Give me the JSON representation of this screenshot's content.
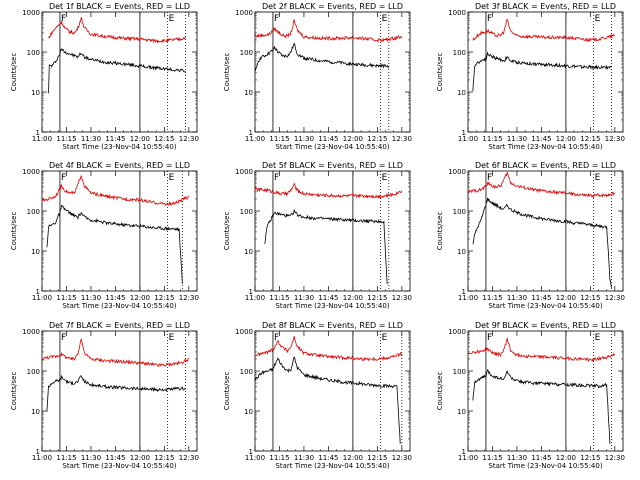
{
  "shared": {
    "ylabel": "Counts/sec",
    "xlabel": "Start Time (23-Nov-04 10:55:40)",
    "x_ticks": [
      "11:00",
      "11:15",
      "11:30",
      "11:45",
      "12:00",
      "12:15",
      "12:30"
    ],
    "x_tick_minutes": [
      0,
      15,
      30,
      45,
      60,
      75,
      90
    ],
    "y_ticks": [
      "1",
      "10",
      "100",
      "1000"
    ],
    "ylim": [
      1,
      1000
    ],
    "xlim_minutes": [
      0,
      95
    ],
    "log_y": true,
    "series_colors": {
      "events": "#000000",
      "lld": "#e00000"
    }
  },
  "chart_data": [
    {
      "type": "line",
      "title": "Det 1f BLACK = Events, RED = LLD",
      "markers": [
        {
          "label": "F",
          "x_min": 11
        },
        {
          "label": "E",
          "x_min": 77
        }
      ],
      "vlines_solid": [
        11,
        60
      ],
      "vlines_dotted": [
        77
      ],
      "data_end_min": 88,
      "series": [
        {
          "key": "events",
          "x": [
            4,
            4.5,
            6,
            8,
            11,
            12,
            14,
            17,
            20,
            22,
            24,
            26,
            30,
            40,
            50,
            60,
            65,
            70,
            75,
            80,
            85,
            88
          ],
          "y": [
            10,
            45,
            45,
            55,
            90,
            120,
            100,
            90,
            80,
            75,
            95,
            75,
            65,
            55,
            50,
            45,
            42,
            40,
            38,
            36,
            35,
            33
          ]
        },
        {
          "key": "lld",
          "x": [
            4,
            6,
            8,
            11,
            12,
            14,
            17,
            20,
            22,
            24,
            26,
            30,
            40,
            50,
            60,
            65,
            70,
            75,
            80,
            85,
            88
          ],
          "y": [
            220,
            300,
            380,
            520,
            560,
            400,
            320,
            300,
            400,
            700,
            400,
            280,
            240,
            220,
            210,
            200,
            190,
            190,
            200,
            210,
            230
          ]
        }
      ]
    },
    {
      "type": "line",
      "title": "Det 2f BLACK = Events, RED = LLD",
      "markers": [
        {
          "label": "F",
          "x_min": 11
        },
        {
          "label": "E",
          "x_min": 77
        }
      ],
      "vlines_solid": [
        11,
        60
      ],
      "vlines_dotted": [
        77
      ],
      "data_end_min": 82,
      "series": [
        {
          "key": "events",
          "x": [
            0,
            2,
            4,
            6,
            8,
            11,
            12,
            14,
            17,
            20,
            22,
            24,
            26,
            30,
            40,
            50,
            60,
            65,
            70,
            75,
            80,
            82
          ],
          "y": [
            30,
            60,
            75,
            80,
            90,
            110,
            130,
            100,
            80,
            80,
            100,
            160,
            90,
            70,
            60,
            55,
            50,
            48,
            47,
            45,
            45,
            44
          ]
        },
        {
          "key": "lld",
          "x": [
            0,
            4,
            8,
            11,
            12,
            14,
            17,
            20,
            22,
            24,
            26,
            30,
            40,
            50,
            60,
            65,
            70,
            75,
            80,
            85,
            90
          ],
          "y": [
            250,
            260,
            270,
            330,
            380,
            320,
            260,
            250,
            300,
            600,
            350,
            240,
            220,
            220,
            230,
            220,
            210,
            200,
            200,
            220,
            250
          ]
        }
      ]
    },
    {
      "type": "line",
      "title": "Det 3f BLACK = Events, RED = LLD",
      "markers": [
        {
          "label": "F",
          "x_min": 11
        },
        {
          "label": "E",
          "x_min": 77
        }
      ],
      "vlines_solid": [
        11,
        60
      ],
      "vlines_dotted": [
        77
      ],
      "data_end_min": 88,
      "series": [
        {
          "key": "events",
          "x": [
            3,
            4,
            6,
            8,
            11,
            12,
            14,
            17,
            20,
            22,
            24,
            26,
            30,
            40,
            50,
            60,
            65,
            70,
            75,
            80,
            85,
            88
          ],
          "y": [
            10,
            45,
            55,
            60,
            70,
            90,
            80,
            70,
            65,
            60,
            75,
            60,
            55,
            50,
            48,
            45,
            44,
            42,
            42,
            41,
            42,
            42
          ]
        },
        {
          "key": "lld",
          "x": [
            3,
            6,
            8,
            11,
            12,
            14,
            17,
            20,
            22,
            24,
            26,
            30,
            40,
            50,
            60,
            65,
            70,
            75,
            80,
            85,
            90
          ],
          "y": [
            200,
            260,
            300,
            320,
            340,
            300,
            260,
            260,
            320,
            650,
            340,
            250,
            240,
            230,
            230,
            220,
            210,
            200,
            210,
            230,
            260
          ]
        }
      ]
    },
    {
      "type": "line",
      "title": "Det 4f BLACK = Events, RED = LLD",
      "markers": [
        {
          "label": "F",
          "x_min": 11
        },
        {
          "label": "E",
          "x_min": 77
        }
      ],
      "vlines_solid": [
        11,
        60
      ],
      "vlines_dotted": [
        77
      ],
      "data_end_min": 86,
      "series": [
        {
          "key": "events",
          "x": [
            3,
            4,
            6,
            8,
            11,
            12,
            14,
            17,
            20,
            22,
            24,
            26,
            30,
            40,
            50,
            60,
            65,
            70,
            75,
            80,
            84,
            85,
            86
          ],
          "y": [
            12,
            40,
            45,
            50,
            90,
            130,
            110,
            90,
            75,
            70,
            90,
            70,
            60,
            50,
            45,
            42,
            40,
            38,
            37,
            36,
            35,
            8,
            1.5
          ]
        },
        {
          "key": "lld",
          "x": [
            0,
            4,
            8,
            11,
            12,
            14,
            17,
            20,
            22,
            24,
            26,
            30,
            40,
            50,
            60,
            65,
            70,
            75,
            80,
            85,
            90
          ],
          "y": [
            180,
            200,
            230,
            350,
            420,
            330,
            280,
            280,
            450,
            800,
            420,
            280,
            230,
            200,
            190,
            170,
            160,
            150,
            150,
            180,
            230
          ]
        }
      ]
    },
    {
      "type": "line",
      "title": "Det 5f BLACK = Events, RED = LLD",
      "markers": [
        {
          "label": "F",
          "x_min": 11
        },
        {
          "label": "E",
          "x_min": 77
        }
      ],
      "vlines_solid": [
        11,
        60
      ],
      "vlines_dotted": [
        77
      ],
      "data_end_min": 82,
      "series": [
        {
          "key": "events",
          "x": [
            6,
            7,
            8,
            11,
            12,
            14,
            17,
            20,
            22,
            24,
            26,
            30,
            40,
            50,
            60,
            65,
            70,
            75,
            79,
            80,
            81
          ],
          "y": [
            15,
            35,
            45,
            75,
            90,
            85,
            80,
            75,
            75,
            100,
            80,
            70,
            65,
            62,
            58,
            57,
            56,
            55,
            55,
            8,
            1.5
          ]
        },
        {
          "key": "lld",
          "x": [
            0,
            4,
            8,
            11,
            12,
            14,
            17,
            20,
            22,
            24,
            26,
            30,
            40,
            50,
            60,
            65,
            70,
            75,
            80,
            85,
            90
          ],
          "y": [
            350,
            340,
            330,
            300,
            300,
            280,
            270,
            270,
            330,
            450,
            320,
            270,
            250,
            240,
            240,
            240,
            240,
            230,
            240,
            260,
            320
          ]
        }
      ]
    },
    {
      "type": "line",
      "title": "Det 6f BLACK = Events, RED = LLD",
      "markers": [
        {
          "label": "F",
          "x_min": 11
        },
        {
          "label": "E",
          "x_min": 77
        }
      ],
      "vlines_solid": [
        11,
        60
      ],
      "vlines_dotted": [
        77
      ],
      "data_end_min": 88,
      "series": [
        {
          "key": "events",
          "x": [
            3,
            4,
            6,
            8,
            11,
            12,
            14,
            17,
            20,
            22,
            24,
            26,
            30,
            40,
            50,
            60,
            65,
            70,
            75,
            80,
            85,
            86,
            87,
            88
          ],
          "y": [
            15,
            25,
            40,
            60,
            150,
            200,
            170,
            140,
            120,
            110,
            140,
            110,
            90,
            70,
            60,
            55,
            50,
            48,
            45,
            42,
            40,
            10,
            2,
            1.2
          ]
        },
        {
          "key": "lld",
          "x": [
            0,
            4,
            8,
            11,
            12,
            14,
            17,
            20,
            22,
            24,
            26,
            30,
            40,
            50,
            60,
            65,
            70,
            75,
            80,
            85,
            90
          ],
          "y": [
            300,
            320,
            340,
            420,
            500,
            440,
            400,
            420,
            600,
            900,
            520,
            420,
            340,
            300,
            280,
            260,
            250,
            240,
            250,
            250,
            280
          ]
        }
      ]
    },
    {
      "type": "line",
      "title": "Det 7f BLACK = Events, RED = LLD",
      "markers": [
        {
          "label": "F",
          "x_min": 11
        },
        {
          "label": "E",
          "x_min": 77
        }
      ],
      "vlines_solid": [
        11,
        60
      ],
      "vlines_dotted": [
        77
      ],
      "data_end_min": 88,
      "series": [
        {
          "key": "events",
          "x": [
            3,
            4,
            6,
            8,
            11,
            12,
            14,
            17,
            20,
            22,
            24,
            26,
            30,
            40,
            50,
            60,
            65,
            70,
            75,
            80,
            85,
            88
          ],
          "y": [
            10,
            40,
            50,
            55,
            60,
            70,
            60,
            50,
            50,
            55,
            75,
            55,
            45,
            40,
            38,
            36,
            35,
            34,
            34,
            35,
            36,
            36
          ]
        },
        {
          "key": "lld",
          "x": [
            0,
            4,
            8,
            11,
            12,
            14,
            17,
            20,
            22,
            24,
            26,
            30,
            40,
            50,
            60,
            65,
            70,
            75,
            80,
            85,
            90
          ],
          "y": [
            200,
            220,
            230,
            250,
            260,
            230,
            200,
            200,
            280,
            650,
            280,
            200,
            180,
            170,
            160,
            150,
            140,
            140,
            150,
            160,
            200
          ]
        }
      ]
    },
    {
      "type": "line",
      "title": "Det 8f BLACK = Events, RED = LLD",
      "markers": [
        {
          "label": "F",
          "x_min": 11
        },
        {
          "label": "E",
          "x_min": 77
        }
      ],
      "vlines_solid": [
        11,
        60
      ],
      "vlines_dotted": [
        77
      ],
      "data_end_min": 90,
      "series": [
        {
          "key": "events",
          "x": [
            0,
            4,
            8,
            11,
            12,
            14,
            17,
            20,
            22,
            24,
            26,
            30,
            40,
            50,
            60,
            65,
            70,
            75,
            80,
            85,
            87,
            88,
            89
          ],
          "y": [
            60,
            90,
            100,
            110,
            140,
            200,
            130,
            100,
            110,
            220,
            120,
            80,
            65,
            55,
            50,
            48,
            45,
            44,
            42,
            42,
            40,
            8,
            1.5
          ]
        },
        {
          "key": "lld",
          "x": [
            0,
            4,
            8,
            11,
            12,
            14,
            17,
            20,
            22,
            24,
            26,
            30,
            40,
            50,
            60,
            65,
            70,
            75,
            80,
            85,
            90
          ],
          "y": [
            250,
            270,
            300,
            350,
            400,
            550,
            380,
            320,
            400,
            700,
            400,
            280,
            240,
            220,
            210,
            200,
            200,
            200,
            210,
            230,
            270
          ]
        }
      ]
    },
    {
      "type": "line",
      "title": "Det 9f BLACK = Events, RED = LLD",
      "markers": [
        {
          "label": "F",
          "x_min": 11
        },
        {
          "label": "E",
          "x_min": 77
        }
      ],
      "vlines_solid": [
        11,
        60
      ],
      "vlines_dotted": [
        77
      ],
      "data_end_min": 88,
      "series": [
        {
          "key": "events",
          "x": [
            3,
            4,
            6,
            8,
            11,
            12,
            14,
            17,
            20,
            22,
            24,
            26,
            30,
            40,
            50,
            60,
            65,
            70,
            75,
            80,
            85,
            86,
            87
          ],
          "y": [
            20,
            50,
            60,
            65,
            75,
            100,
            80,
            70,
            65,
            60,
            100,
            70,
            55,
            50,
            48,
            46,
            45,
            44,
            43,
            42,
            45,
            8,
            1.5
          ]
        },
        {
          "key": "lld",
          "x": [
            0,
            4,
            8,
            11,
            12,
            14,
            17,
            20,
            22,
            24,
            26,
            30,
            40,
            50,
            60,
            65,
            70,
            75,
            80,
            85,
            90
          ],
          "y": [
            280,
            300,
            310,
            340,
            360,
            300,
            270,
            260,
            330,
            650,
            330,
            250,
            230,
            220,
            210,
            200,
            200,
            190,
            200,
            220,
            260
          ]
        }
      ]
    }
  ]
}
